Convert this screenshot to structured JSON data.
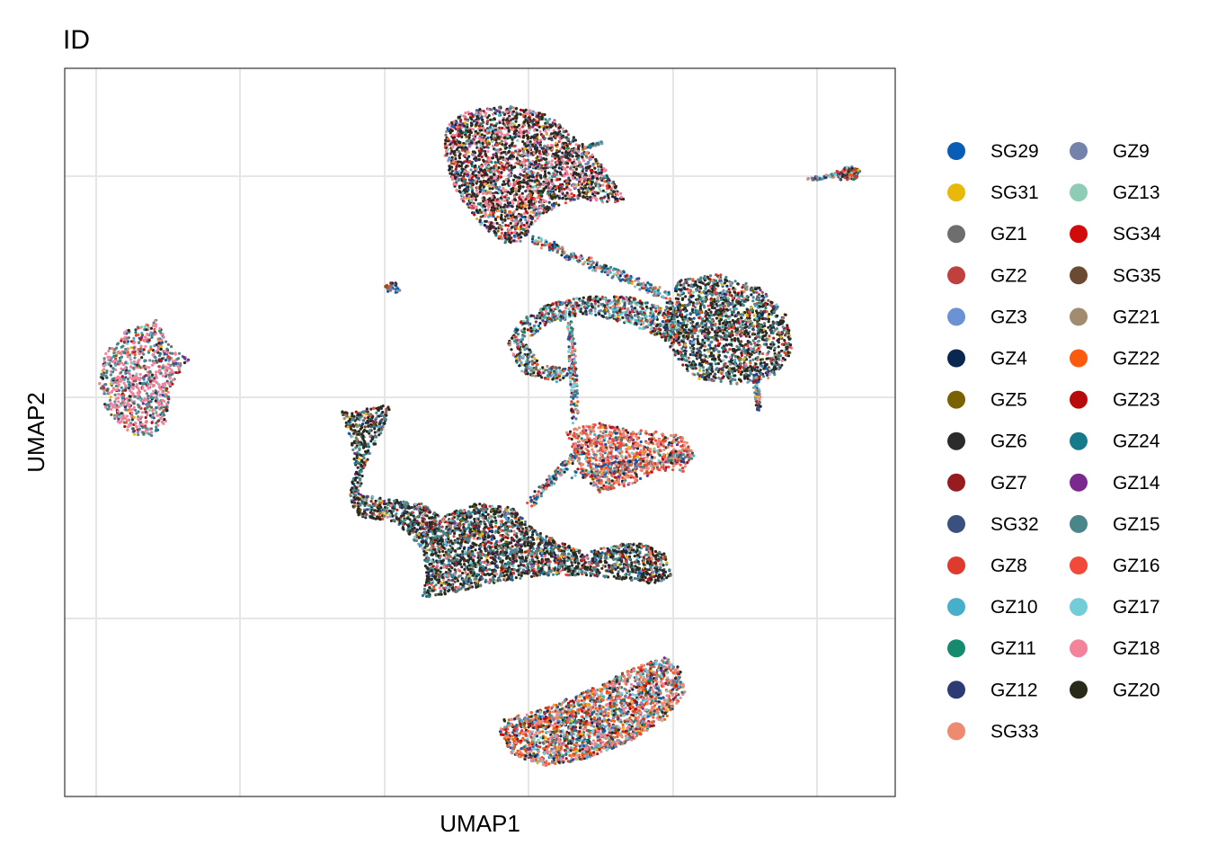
{
  "chart_data": {
    "type": "scatter",
    "title": "ID",
    "xlabel": "UMAP1",
    "ylabel": "UMAP2",
    "x_ticks_labeled": false,
    "y_ticks_labeled": false,
    "grid": true,
    "legend_position": "right",
    "legend_columns": 2,
    "series": [
      {
        "name": "SG29",
        "color": "#0A5DB5"
      },
      {
        "name": "SG31",
        "color": "#E8B80B"
      },
      {
        "name": "GZ1",
        "color": "#6E6E6E"
      },
      {
        "name": "GZ2",
        "color": "#C0403E"
      },
      {
        "name": "GZ3",
        "color": "#6A92D4"
      },
      {
        "name": "GZ4",
        "color": "#0A2750"
      },
      {
        "name": "GZ5",
        "color": "#7A6200"
      },
      {
        "name": "GZ6",
        "color": "#2B2B2B"
      },
      {
        "name": "GZ7",
        "color": "#971C22"
      },
      {
        "name": "SG32",
        "color": "#3A5180"
      },
      {
        "name": "GZ8",
        "color": "#DE3A2D"
      },
      {
        "name": "GZ10",
        "color": "#46AFC9"
      },
      {
        "name": "GZ11",
        "color": "#148A6F"
      },
      {
        "name": "GZ12",
        "color": "#2C3B73"
      },
      {
        "name": "SG33",
        "color": "#EE8A70"
      },
      {
        "name": "GZ9",
        "color": "#7383AA"
      },
      {
        "name": "GZ13",
        "color": "#8ECCB5"
      },
      {
        "name": "SG34",
        "color": "#D20A0A"
      },
      {
        "name": "SG35",
        "color": "#6A4A33"
      },
      {
        "name": "GZ21",
        "color": "#A18C70"
      },
      {
        "name": "GZ22",
        "color": "#FA5B0E"
      },
      {
        "name": "GZ23",
        "color": "#B80A0A"
      },
      {
        "name": "GZ24",
        "color": "#167A8A"
      },
      {
        "name": "GZ14",
        "color": "#7A2A8C"
      },
      {
        "name": "GZ15",
        "color": "#4A858A"
      },
      {
        "name": "GZ16",
        "color": "#F24A3A"
      },
      {
        "name": "GZ17",
        "color": "#73CDD6"
      },
      {
        "name": "GZ18",
        "color": "#F2839A"
      },
      {
        "name": "GZ20",
        "color": "#2A2A1A"
      }
    ]
  }
}
